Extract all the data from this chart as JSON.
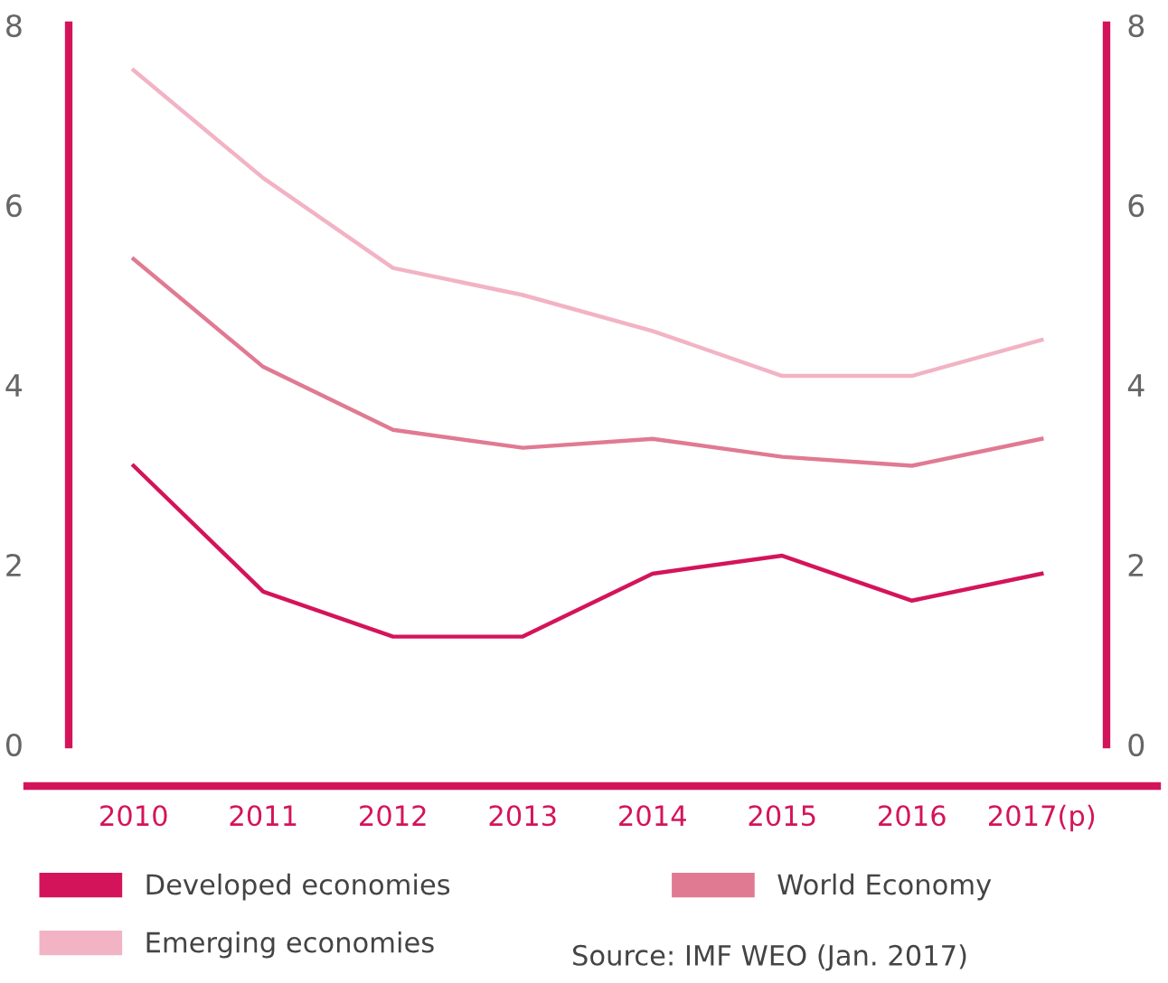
{
  "chart_data": {
    "type": "line",
    "categories": [
      "2010",
      "2011",
      "2012",
      "2013",
      "2014",
      "2015",
      "2016",
      "2017(p)"
    ],
    "series": [
      {
        "name": "Developed economies",
        "color": "#d4145a",
        "values": [
          3.1,
          1.7,
          1.2,
          1.2,
          1.9,
          2.1,
          1.6,
          1.9
        ]
      },
      {
        "name": "World Economy",
        "color": "#e07a92",
        "values": [
          5.4,
          4.2,
          3.5,
          3.3,
          3.4,
          3.2,
          3.1,
          3.4
        ]
      },
      {
        "name": "Emerging economies",
        "color": "#f2b3c4",
        "values": [
          7.5,
          6.3,
          5.3,
          5.0,
          4.6,
          4.1,
          4.1,
          4.5
        ]
      }
    ],
    "ylim": [
      0,
      8
    ],
    "yticks": [
      0,
      2,
      4,
      6,
      8
    ],
    "y2lim": [
      0,
      8
    ],
    "y2ticks": [
      0,
      2,
      4,
      6,
      8
    ],
    "grid": false,
    "legend": "bottom",
    "marker": "none",
    "line_style": "solid",
    "annotations": [
      "Source: IMF WEO (Jan. 2017)"
    ]
  }
}
